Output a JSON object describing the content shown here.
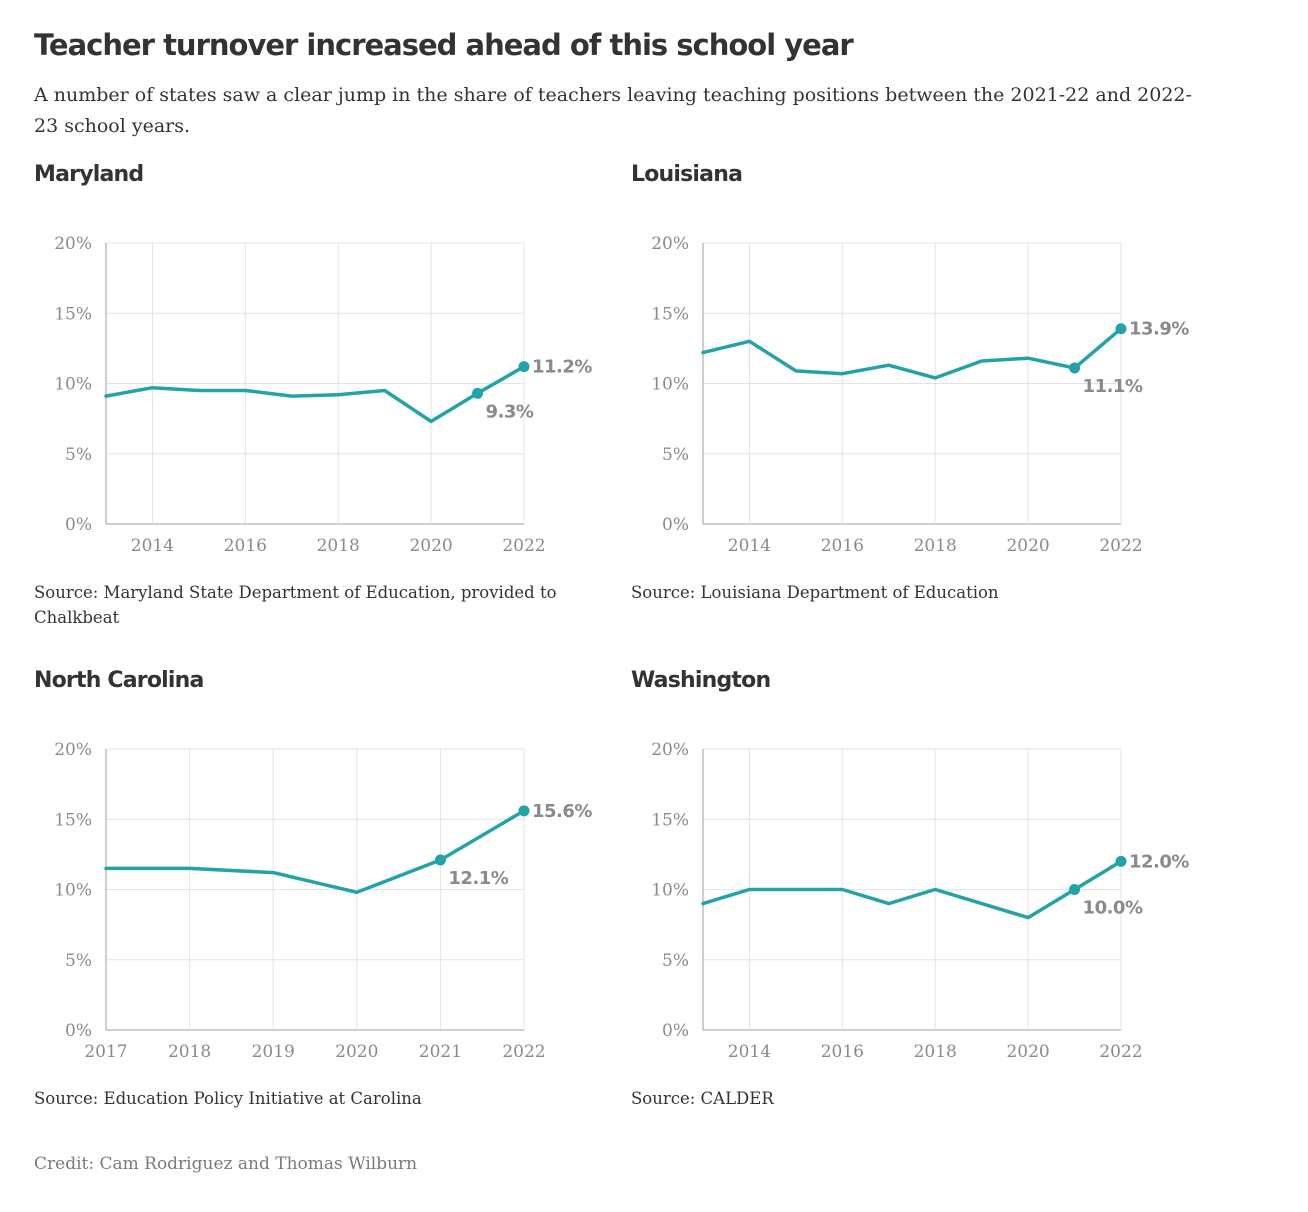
{
  "title": "Teacher turnover increased ahead of this school year",
  "subtitle": "A number of states saw a clear jump in the share of teachers leaving teaching positions between the 2021-22 and 2022-23 school years.",
  "credit": "Credit: Cam Rodriguez and Thomas Wilburn",
  "colors": {
    "line": "#22a3a8",
    "grid": "#e3e3e3",
    "axis": "#bdbdbd",
    "tick_text": "#8a8a8a",
    "value_label": "#8a8a8a"
  },
  "chart_data": [
    {
      "type": "line",
      "title": "Maryland",
      "source": "Source: Maryland State Department of Education, provided to Chalkbeat",
      "x": [
        2013,
        2014,
        2015,
        2016,
        2017,
        2018,
        2019,
        2020,
        2021,
        2022
      ],
      "values": [
        9.1,
        9.7,
        9.5,
        9.5,
        9.1,
        9.2,
        9.5,
        7.3,
        9.3,
        11.2
      ],
      "xlim": [
        2013,
        2022
      ],
      "ylim": [
        0,
        20
      ],
      "x_ticks": [
        2014,
        2016,
        2018,
        2020,
        2022
      ],
      "x_tick_labels": [
        "2014",
        "2016",
        "2018",
        "2020",
        "2022"
      ],
      "y_ticks": [
        0,
        5,
        10,
        15,
        20
      ],
      "y_tick_labels": [
        "0%",
        "5%",
        "10%",
        "15%",
        "20%"
      ],
      "grid": true,
      "annotations": [
        {
          "x": 2021,
          "y": 9.3,
          "text": "9.3%",
          "placement": "below-right"
        },
        {
          "x": 2022,
          "y": 11.2,
          "text": "11.2%",
          "placement": "right"
        }
      ]
    },
    {
      "type": "line",
      "title": "Louisiana",
      "source": "Source: Louisiana Department of Education",
      "x": [
        2013,
        2014,
        2015,
        2016,
        2017,
        2018,
        2019,
        2020,
        2021,
        2022
      ],
      "values": [
        12.2,
        13.0,
        10.9,
        10.7,
        11.3,
        10.4,
        11.6,
        11.8,
        11.1,
        13.9
      ],
      "xlim": [
        2013,
        2022
      ],
      "ylim": [
        0,
        20
      ],
      "x_ticks": [
        2014,
        2016,
        2018,
        2020,
        2022
      ],
      "x_tick_labels": [
        "2014",
        "2016",
        "2018",
        "2020",
        "2022"
      ],
      "y_ticks": [
        0,
        5,
        10,
        15,
        20
      ],
      "y_tick_labels": [
        "0%",
        "5%",
        "10%",
        "15%",
        "20%"
      ],
      "grid": true,
      "annotations": [
        {
          "x": 2021,
          "y": 11.1,
          "text": "11.1%",
          "placement": "below-right"
        },
        {
          "x": 2022,
          "y": 13.9,
          "text": "13.9%",
          "placement": "right"
        }
      ]
    },
    {
      "type": "line",
      "title": "North Carolina",
      "source": "Source: Education Policy Initiative at Carolina",
      "x": [
        2017,
        2018,
        2019,
        2020,
        2021,
        2022
      ],
      "values": [
        11.5,
        11.5,
        11.2,
        9.8,
        12.1,
        15.6
      ],
      "xlim": [
        2017,
        2022
      ],
      "ylim": [
        0,
        20
      ],
      "x_ticks": [
        2017,
        2018,
        2019,
        2020,
        2021,
        2022
      ],
      "x_tick_labels": [
        "2017",
        "2018",
        "2019",
        "2020",
        "2021",
        "2022"
      ],
      "y_ticks": [
        0,
        5,
        10,
        15,
        20
      ],
      "y_tick_labels": [
        "0%",
        "5%",
        "10%",
        "15%",
        "20%"
      ],
      "grid": true,
      "annotations": [
        {
          "x": 2021,
          "y": 12.1,
          "text": "12.1%",
          "placement": "below-right"
        },
        {
          "x": 2022,
          "y": 15.6,
          "text": "15.6%",
          "placement": "right"
        }
      ]
    },
    {
      "type": "line",
      "title": "Washington",
      "source": "Source: CALDER",
      "x": [
        2013,
        2014,
        2015,
        2016,
        2017,
        2018,
        2019,
        2020,
        2021,
        2022
      ],
      "values": [
        9.0,
        10.0,
        10.0,
        10.0,
        9.0,
        10.0,
        9.0,
        8.0,
        10.0,
        12.0
      ],
      "xlim": [
        2013,
        2022
      ],
      "ylim": [
        0,
        20
      ],
      "x_ticks": [
        2014,
        2016,
        2018,
        2020,
        2022
      ],
      "x_tick_labels": [
        "2014",
        "2016",
        "2018",
        "2020",
        "2022"
      ],
      "y_ticks": [
        0,
        5,
        10,
        15,
        20
      ],
      "y_tick_labels": [
        "0%",
        "5%",
        "10%",
        "15%",
        "20%"
      ],
      "grid": true,
      "annotations": [
        {
          "x": 2021,
          "y": 10.0,
          "text": "10.0%",
          "placement": "below-right"
        },
        {
          "x": 2022,
          "y": 12.0,
          "text": "12.0%",
          "placement": "right"
        }
      ]
    }
  ]
}
